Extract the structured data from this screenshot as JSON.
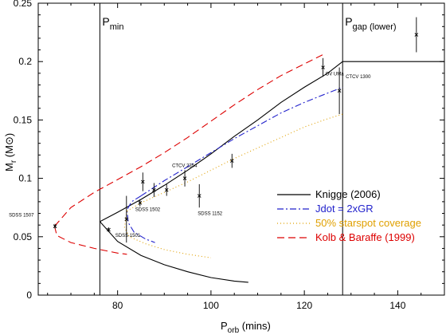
{
  "chart_data": {
    "type": "line",
    "xlabel_main": "P",
    "xlabel_sub": "orb",
    "xlabel_tail": " (mins)",
    "ylabel_main": "M",
    "ylabel_sub": "r",
    "ylabel_tail": " (M",
    "ylabel_sun": "⊙",
    "ylabel_close": ")",
    "xlim": [
      63,
      150
    ],
    "ylim": [
      0,
      0.25
    ],
    "xticks": [
      80,
      100,
      120,
      140
    ],
    "xtick_labels": [
      "80",
      "100",
      "120",
      "140"
    ],
    "yticks": [
      0,
      0.05,
      0.1,
      0.15,
      0.2,
      0.25
    ],
    "ytick_labels": [
      "0",
      "0.05",
      "0.1",
      "0.15",
      "0.2",
      "0.25"
    ],
    "vlines": [
      {
        "x": 76.2,
        "main": "P",
        "sub": "min"
      },
      {
        "x": 128.2,
        "main": "P",
        "sub": "gap (lower)"
      }
    ],
    "series": [
      {
        "name": "Knigge (2006)",
        "color": "#000000",
        "dash": "",
        "points": [
          [
            128.2,
            0.2
          ],
          [
            150,
            0.2
          ],
          [
            150,
            0.2
          ]
        ],
        "segments": [
          [
            [
              76.2,
              0.063
            ],
            [
              80,
              0.071
            ],
            [
              85,
              0.082
            ],
            [
              90,
              0.094
            ],
            [
              95,
              0.107
            ],
            [
              100,
              0.121
            ],
            [
              105,
              0.136
            ],
            [
              110,
              0.15
            ],
            [
              115,
              0.165
            ],
            [
              120,
              0.178
            ],
            [
              125,
              0.19
            ],
            [
              128.2,
              0.2
            ],
            [
              150,
              0.2
            ]
          ],
          [
            [
              76.2,
              0.063
            ],
            [
              80,
              0.046
            ],
            [
              85,
              0.034
            ],
            [
              90,
              0.026
            ],
            [
              95,
              0.02
            ],
            [
              100,
              0.015
            ],
            [
              105,
              0.012
            ],
            [
              108,
              0.011
            ]
          ]
        ]
      },
      {
        "name": "Jdot = 2xGR",
        "color": "#2222cc",
        "dash": "8,3,2,3",
        "segments": [
          [
            [
              85,
              0.085
            ],
            [
              90,
              0.098
            ],
            [
              95,
              0.11
            ],
            [
              100,
              0.122
            ],
            [
              105,
              0.134
            ],
            [
              110,
              0.145
            ],
            [
              115,
              0.156
            ],
            [
              120,
              0.165
            ],
            [
              125,
              0.173
            ],
            [
              128.2,
              0.178
            ]
          ],
          [
            [
              85,
              0.085
            ],
            [
              83,
              0.08
            ],
            [
              82,
              0.073
            ],
            [
              82.3,
              0.062
            ],
            [
              83.5,
              0.054
            ],
            [
              86,
              0.048
            ],
            [
              88,
              0.045
            ]
          ]
        ]
      },
      {
        "name": "50% starspot coverage",
        "color": "#e0a000",
        "dash": "1,3",
        "segments": [
          [
            [
              82,
              0.072
            ],
            [
              85,
              0.079
            ],
            [
              90,
              0.088
            ],
            [
              95,
              0.097
            ],
            [
              100,
              0.107
            ],
            [
              105,
              0.117
            ],
            [
              110,
              0.126
            ],
            [
              115,
              0.135
            ],
            [
              120,
              0.144
            ],
            [
              125,
              0.151
            ],
            [
              128.2,
              0.155
            ]
          ],
          [
            [
              82,
              0.072
            ],
            [
              81.5,
              0.058
            ],
            [
              82.5,
              0.05
            ],
            [
              86,
              0.044
            ],
            [
              90,
              0.039
            ],
            [
              95,
              0.035
            ],
            [
              100,
              0.032
            ]
          ]
        ]
      },
      {
        "name": "Kolb & Baraffe (1999)",
        "color": "#dd0000",
        "dash": "9,5",
        "segments": [
          [
            [
              66.5,
              0.059
            ],
            [
              70,
              0.075
            ],
            [
              75,
              0.088
            ],
            [
              80,
              0.099
            ],
            [
              85,
              0.11
            ],
            [
              90,
              0.122
            ],
            [
              95,
              0.135
            ],
            [
              100,
              0.149
            ],
            [
              105,
              0.163
            ],
            [
              110,
              0.176
            ],
            [
              115,
              0.188
            ],
            [
              120,
              0.198
            ],
            [
              124,
              0.206
            ]
          ],
          [
            [
              66.5,
              0.059
            ],
            [
              67,
              0.051
            ],
            [
              70,
              0.045
            ],
            [
              75,
              0.04
            ],
            [
              80,
              0.036
            ],
            [
              82,
              0.035
            ]
          ]
        ]
      }
    ],
    "points": [
      {
        "label": "SDSS 1507",
        "x": 66.6,
        "y": 0.059,
        "yerr": 0.002
      },
      {
        "label": "SDSS 1501",
        "x": 81.9,
        "y": 0.065,
        "yerr": 0.02
      },
      {
        "label": "SDSS 1502",
        "x": 84.8,
        "y": 0.079,
        "yerr": 0.003
      },
      {
        "label": "",
        "x": 78.1,
        "y": 0.056,
        "yerr": 0.002
      },
      {
        "label": "",
        "x": 85.4,
        "y": 0.097,
        "yerr": 0.008
      },
      {
        "label": "",
        "x": 87.8,
        "y": 0.09,
        "yerr": 0.006
      },
      {
        "label": "",
        "x": 90.5,
        "y": 0.09,
        "yerr": 0.005
      },
      {
        "label": "CTCV 2354",
        "x": 94.4,
        "y": 0.1,
        "yerr": 0.007
      },
      {
        "label": "SDSS 1152",
        "x": 97.5,
        "y": 0.085,
        "yerr": 0.01
      },
      {
        "label": "",
        "x": 104.5,
        "y": 0.115,
        "yerr": 0.006
      },
      {
        "label": "OV UMa",
        "x": 124.0,
        "y": 0.195,
        "yerr": 0.008
      },
      {
        "label": "CTCV 1300",
        "x": 127.5,
        "y": 0.175,
        "yerr": 0.02
      },
      {
        "label": "",
        "x": 144.0,
        "y": 0.223,
        "yerr": 0.015
      }
    ],
    "legend_position": "lower-right"
  }
}
